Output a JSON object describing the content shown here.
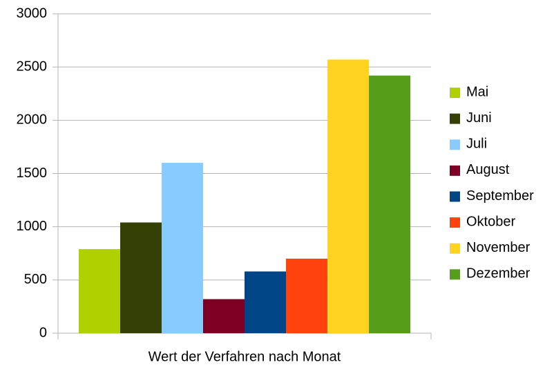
{
  "chart_data": {
    "type": "bar",
    "categories": [
      "Wert der Verfahren nach Monat"
    ],
    "series": [
      {
        "name": "Mai",
        "color": "#b0d000",
        "values": [
          790
        ]
      },
      {
        "name": "Juni",
        "color": "#344004",
        "values": [
          1040
        ]
      },
      {
        "name": "Juli",
        "color": "#87cbff",
        "values": [
          1600
        ]
      },
      {
        "name": "August",
        "color": "#7d0024",
        "values": [
          320
        ]
      },
      {
        "name": "September",
        "color": "#004586",
        "values": [
          580
        ]
      },
      {
        "name": "Oktober",
        "color": "#ff420e",
        "values": [
          700
        ]
      },
      {
        "name": "November",
        "color": "#ffd320",
        "values": [
          2570
        ]
      },
      {
        "name": "Dezember",
        "color": "#579d1c",
        "values": [
          2420
        ]
      }
    ],
    "ylim": [
      0,
      3000
    ],
    "yticks": [
      0,
      500,
      1000,
      1500,
      2000,
      2500,
      3000
    ],
    "grid": true,
    "legend": "right"
  }
}
